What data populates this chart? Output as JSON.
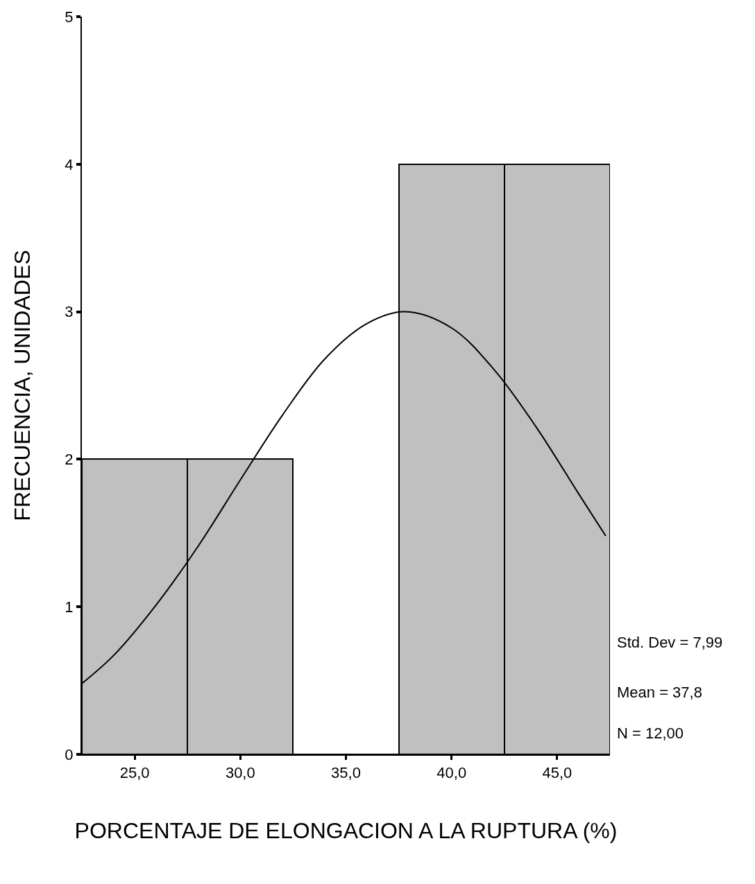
{
  "chart_data": {
    "type": "histogram",
    "xlabel": "PORCENTAJE DE ELONGACION A LA RUPTURA (%)",
    "ylabel": "FRECUENCIA, UNIDADES",
    "bins": [
      22.5,
      27.5,
      32.5,
      37.5,
      42.5,
      47.5
    ],
    "values": [
      2,
      2,
      0,
      4,
      4
    ],
    "color": "#c0c0c0",
    "series": [
      {
        "type": "line",
        "color": "#000000",
        "x": [
          22.5,
          24,
          26,
          28,
          30,
          32,
          34,
          36,
          37.8,
          40,
          42,
          44,
          46,
          47.3
        ],
        "values": [
          0.48,
          0.67,
          1.01,
          1.41,
          1.86,
          2.3,
          2.68,
          2.92,
          3.0,
          2.89,
          2.61,
          2.22,
          1.77,
          1.48
        ]
      }
    ],
    "xlim": [
      22.5,
      47.5
    ],
    "xticks": [
      {
        "value": 25,
        "label": "25,0"
      },
      {
        "value": 30,
        "label": "30,0"
      },
      {
        "value": 35,
        "label": "35,0"
      },
      {
        "value": 40,
        "label": "40,0"
      },
      {
        "value": 45,
        "label": "45,0"
      }
    ],
    "ylim": [
      0,
      5
    ],
    "yticks": [
      0,
      1,
      2,
      3,
      4,
      5
    ],
    "annotations": [
      "Std. Dev = 7,99",
      "Mean = 37,8",
      "N = 12,00"
    ]
  }
}
